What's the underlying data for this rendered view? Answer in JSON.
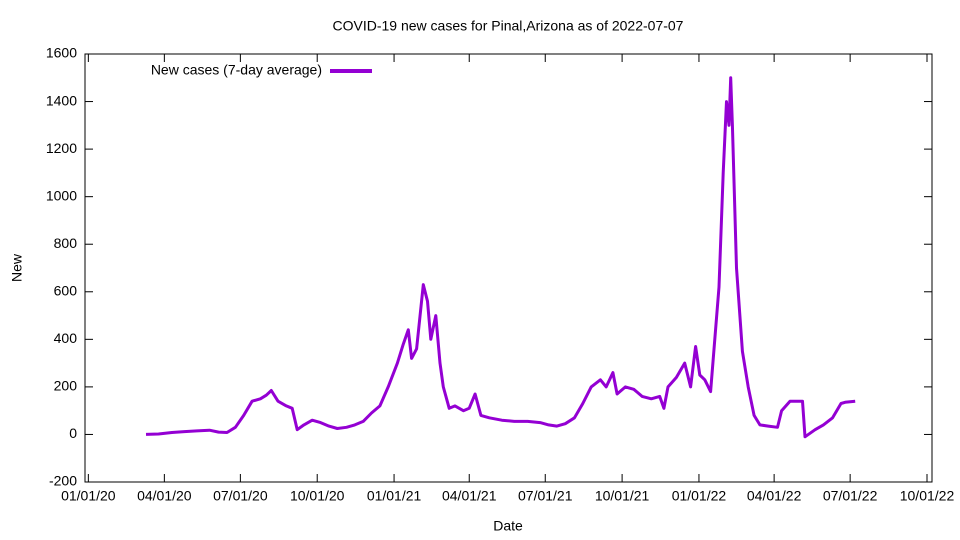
{
  "chart_data": {
    "type": "line",
    "title": "COVID-19 new cases for Pinal,Arizona as of 2022-07-07",
    "xlabel": "Date",
    "ylabel": "New",
    "x": [
      "2020-03-10",
      "2020-03-25",
      "2020-04-10",
      "2020-04-25",
      "2020-05-10",
      "2020-05-25",
      "2020-06-05",
      "2020-06-15",
      "2020-06-25",
      "2020-07-05",
      "2020-07-15",
      "2020-07-25",
      "2020-08-01",
      "2020-08-07",
      "2020-08-15",
      "2020-08-25",
      "2020-09-01",
      "2020-09-07",
      "2020-09-15",
      "2020-09-25",
      "2020-10-05",
      "2020-10-15",
      "2020-10-25",
      "2020-11-05",
      "2020-11-15",
      "2020-11-25",
      "2020-12-05",
      "2020-12-15",
      "2020-12-25",
      "2021-01-05",
      "2021-01-12",
      "2021-01-18",
      "2021-01-22",
      "2021-01-28",
      "2021-02-05",
      "2021-02-10",
      "2021-02-14",
      "2021-02-20",
      "2021-02-25",
      "2021-03-01",
      "2021-03-08",
      "2021-03-15",
      "2021-03-25",
      "2021-04-01",
      "2021-04-08",
      "2021-04-15",
      "2021-04-25",
      "2021-05-10",
      "2021-05-25",
      "2021-06-10",
      "2021-06-25",
      "2021-07-05",
      "2021-07-15",
      "2021-07-25",
      "2021-08-05",
      "2021-08-15",
      "2021-08-25",
      "2021-09-05",
      "2021-09-12",
      "2021-09-20",
      "2021-09-25",
      "2021-10-05",
      "2021-10-15",
      "2021-10-25",
      "2021-11-05",
      "2021-11-15",
      "2021-11-20",
      "2021-11-25",
      "2021-12-05",
      "2021-12-15",
      "2021-12-22",
      "2021-12-28",
      "2022-01-02",
      "2022-01-08",
      "2022-01-15",
      "2022-01-20",
      "2022-01-25",
      "2022-01-30",
      "2022-02-03",
      "2022-02-06",
      "2022-02-08",
      "2022-02-10",
      "2022-02-15",
      "2022-02-22",
      "2022-03-01",
      "2022-03-08",
      "2022-03-15",
      "2022-03-25",
      "2022-04-05",
      "2022-04-10",
      "2022-04-20",
      "2022-05-05",
      "2022-05-08",
      "2022-05-20",
      "2022-05-30",
      "2022-06-10",
      "2022-06-20",
      "2022-06-25",
      "2022-07-07"
    ],
    "series": [
      {
        "name": "New cases (7-day average)",
        "color": "#9400d3",
        "values": [
          0,
          2,
          8,
          12,
          15,
          18,
          10,
          8,
          30,
          80,
          140,
          150,
          165,
          185,
          140,
          120,
          110,
          20,
          40,
          60,
          50,
          35,
          25,
          30,
          40,
          55,
          90,
          120,
          200,
          300,
          380,
          440,
          320,
          360,
          630,
          560,
          400,
          500,
          300,
          200,
          110,
          120,
          100,
          110,
          170,
          80,
          70,
          60,
          55,
          55,
          50,
          40,
          35,
          45,
          70,
          130,
          200,
          230,
          200,
          260,
          170,
          200,
          190,
          160,
          150,
          160,
          110,
          200,
          240,
          300,
          200,
          370,
          250,
          230,
          180,
          400,
          620,
          1100,
          1400,
          1300,
          1500,
          1300,
          700,
          350,
          200,
          80,
          40,
          35,
          30,
          100,
          140,
          140,
          -10,
          20,
          40,
          70,
          130,
          135,
          140
        ]
      }
    ],
    "xlim": [
      "2019-12-28",
      "2022-10-07"
    ],
    "xticks": [
      {
        "value": "2020-01-01",
        "label": "01/01/20"
      },
      {
        "value": "2020-04-01",
        "label": "04/01/20"
      },
      {
        "value": "2020-07-01",
        "label": "07/01/20"
      },
      {
        "value": "2020-10-01",
        "label": "10/01/20"
      },
      {
        "value": "2021-01-01",
        "label": "01/01/21"
      },
      {
        "value": "2021-04-01",
        "label": "04/01/21"
      },
      {
        "value": "2021-07-01",
        "label": "07/01/21"
      },
      {
        "value": "2021-10-01",
        "label": "10/01/21"
      },
      {
        "value": "2022-01-01",
        "label": "01/01/22"
      },
      {
        "value": "2022-04-01",
        "label": "04/01/22"
      },
      {
        "value": "2022-07-01",
        "label": "07/01/22"
      },
      {
        "value": "2022-10-01",
        "label": "10/01/22"
      }
    ],
    "ylim": [
      -200,
      1600
    ],
    "yticks": [
      -200,
      0,
      200,
      400,
      600,
      800,
      1000,
      1200,
      1400,
      1600
    ],
    "grid": false,
    "legend": "top left"
  }
}
